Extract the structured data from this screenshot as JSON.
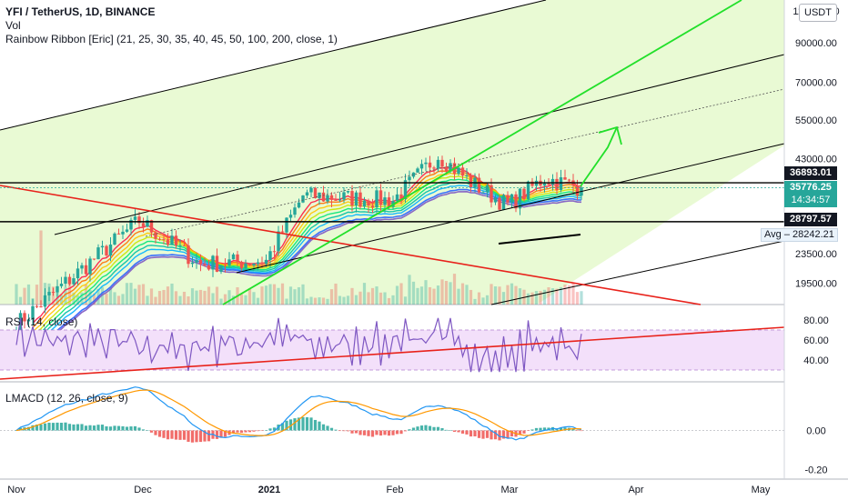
{
  "header": {
    "symbol": "YFI / TetherUS, 1D, BINANCE",
    "volume_label": "Vol",
    "ribbon_label": "Rainbow Ribbon [Eric] (21, 25, 30, 35, 40, 45, 50, 100, 200, close, 1)",
    "currency_button": "USDT"
  },
  "rsi_label": "RSI (14, close)",
  "lmacd_label": "LMACD (12, 26, close, 9)",
  "price_tags": {
    "upper_level": "36893.01",
    "last_price": "35776.25",
    "countdown": "14:34:57",
    "lower_level": "28797.57",
    "avg_label": "Avg",
    "avg_value": "28242.21"
  },
  "colors": {
    "bullish": "#26a69a",
    "bearish": "#ef5350",
    "channel_fill": "#d7f5b0",
    "trendline_green": "#22e02a",
    "trendline_red": "#e8221b",
    "rsi_line": "#7e57c2",
    "rsi_band": "#f3e0fa",
    "macd_line": "#2196f3",
    "signal_line": "#ff9800"
  },
  "chart_data": [
    {
      "type": "candlestick",
      "title": "YFI / TetherUS, 1D, BINANCE",
      "y_scale": "log",
      "ylim": [
        17000,
        118000
      ],
      "x_ticks": [
        "Nov",
        "Dec",
        "2021",
        "Feb",
        "Mar",
        "Apr",
        "May"
      ],
      "y_ticks": [
        "110000.00",
        "90000.00",
        "70000.00",
        "55000.00",
        "43000.00",
        "23500.00",
        "19500.00"
      ],
      "levels": {
        "upper": 36893.01,
        "last": 35776.25,
        "lower": 28797.57,
        "average": 28242.21
      },
      "series": [
        {
          "name": "Rainbow Ribbon [Eric]",
          "periods": [
            21,
            25,
            30,
            35,
            40,
            45,
            50,
            100,
            200
          ]
        },
        {
          "name": "Vol"
        }
      ],
      "approx_closes": {
        "Nov": 15000,
        "Dec": 29000,
        "Dec 15": 22000,
        "2021": 22500,
        "Jan 10": 34000,
        "Feb": 33000,
        "Feb 12": 44000,
        "Feb 20": 37000,
        "Mar": 32000,
        "Mar 10": 38000,
        "Mar 20": 35776.25
      }
    },
    {
      "type": "line",
      "title": "RSI (14, close)",
      "ylim": [
        20,
        90
      ],
      "y_ticks": [
        "80.00",
        "60.00",
        "40.00"
      ],
      "bands": [
        70,
        30
      ]
    },
    {
      "type": "line",
      "title": "LMACD (12, 26, close, 9)",
      "ylim": [
        -0.24,
        0.24
      ],
      "y_ticks": [
        "0.00",
        "-0.20"
      ],
      "series": [
        {
          "name": "LMACD"
        },
        {
          "name": "Signal"
        },
        {
          "name": "Histogram"
        }
      ]
    }
  ]
}
